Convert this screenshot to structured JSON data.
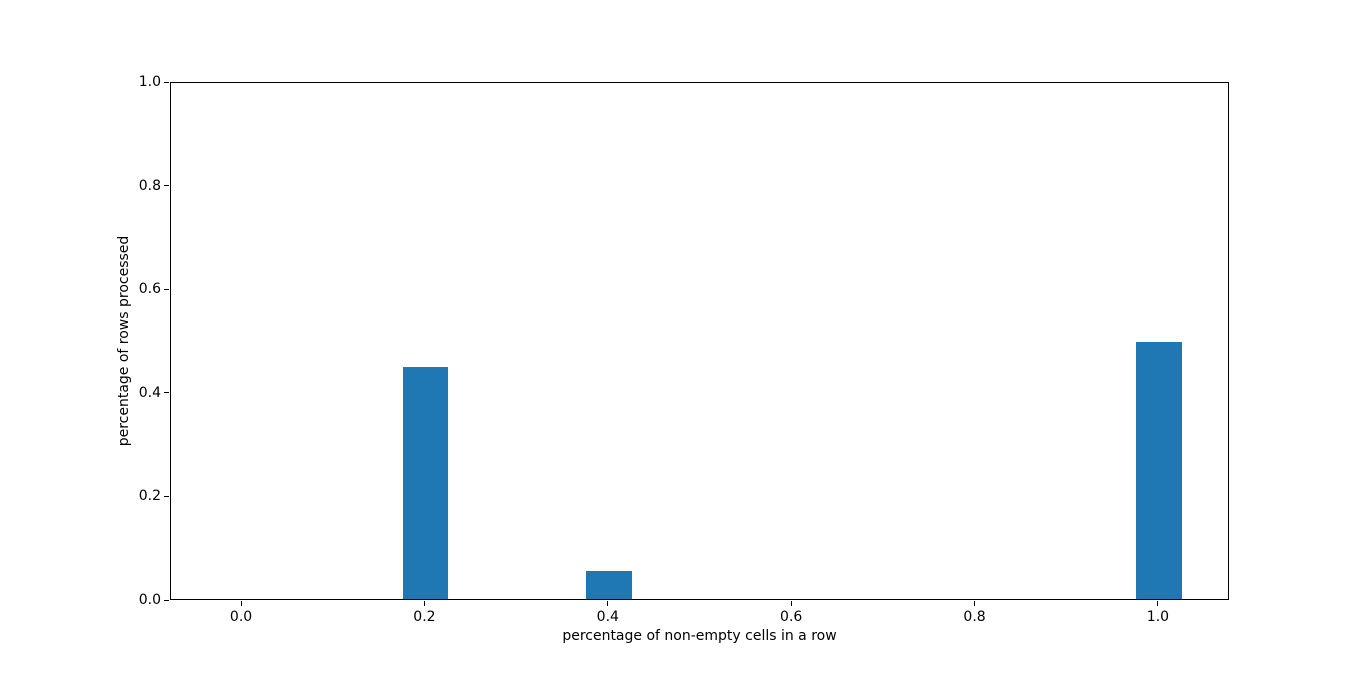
{
  "figure": {
    "background": "#ffffff",
    "spine_color": "#000000",
    "text_color": "#000000"
  },
  "chart_data": {
    "type": "bar",
    "x": [
      0.0,
      0.2,
      0.4,
      0.6,
      0.8,
      1.0
    ],
    "values": [
      0,
      0.448,
      0.054,
      0,
      0,
      0.497
    ],
    "bar_width": 0.05,
    "bar_color": "#1f77b4",
    "title": "",
    "xlabel": "percentage of non-empty cells in a row",
    "ylabel": "percentage of rows processed",
    "xlim": [
      -0.0775,
      1.0775
    ],
    "ylim": [
      0,
      1
    ],
    "xticks": {
      "values": [
        0.0,
        0.2,
        0.4,
        0.6,
        0.8,
        1.0
      ],
      "labels": [
        "0.0",
        "0.2",
        "0.4",
        "0.6",
        "0.8",
        "1.0"
      ]
    },
    "yticks": {
      "values": [
        0.0,
        0.2,
        0.4,
        0.6,
        0.8,
        1.0
      ],
      "labels": [
        "0.0",
        "0.2",
        "0.4",
        "0.6",
        "0.8",
        "1.0"
      ]
    },
    "grid": false,
    "legend": null
  }
}
